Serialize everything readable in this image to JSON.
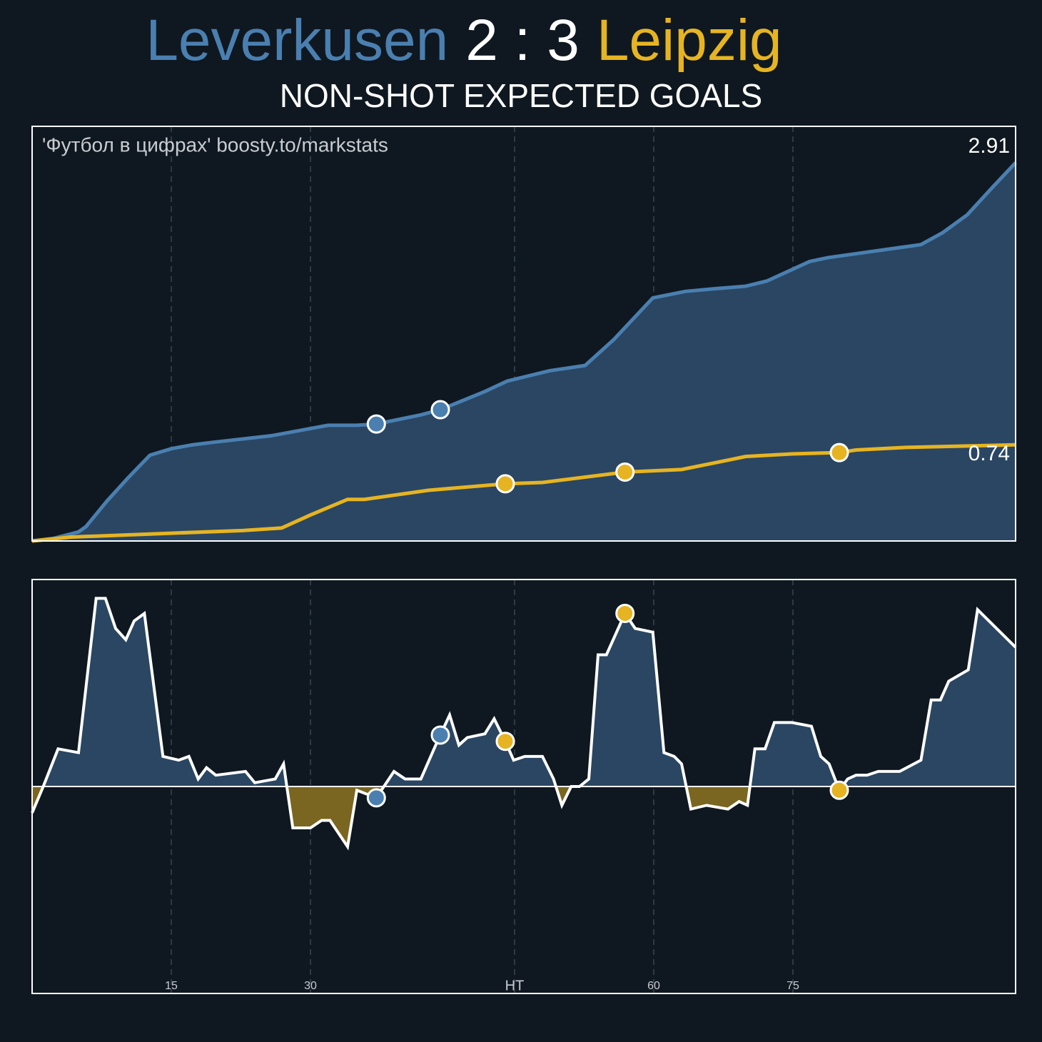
{
  "header": {
    "home": "Leverkusen",
    "score": "2 : 3",
    "away": "Leipzig",
    "subtitle": "NON-SHOT EXPECTED GOALS"
  },
  "chart_data": [
    {
      "type": "cumulative-line",
      "watermark": "'Футбол в цифрах' boosty.to/markstats",
      "xlim": [
        0,
        106
      ],
      "ylim": [
        0,
        3.19
      ],
      "xticks": [
        15,
        30,
        {
          "value": 52,
          "label": "HT"
        },
        {
          "value": 67,
          "label": "60"
        },
        {
          "value": 82,
          "label": "75"
        }
      ],
      "grid": true,
      "series": [
        {
          "color": "#4a7fb0",
          "fill": "#2a4662",
          "total": 2.91,
          "x": [
            0,
            2.3,
            5,
            5.8,
            8.1,
            10.4,
            12.7,
            15,
            17.3,
            19.6,
            25.8,
            31.9,
            35,
            37.1,
            41.9,
            44,
            48.8,
            51.2,
            55.8,
            59.6,
            62.7,
            66.9,
            70.4,
            73.5,
            76.9,
            79.2,
            83.8,
            85.8,
            95.8,
            98.1,
            100.8,
            103.5,
            106
          ],
          "values": [
            0,
            0.02,
            0.07,
            0.11,
            0.31,
            0.49,
            0.66,
            0.71,
            0.74,
            0.76,
            0.81,
            0.89,
            0.89,
            0.9,
            0.97,
            1.01,
            1.15,
            1.23,
            1.31,
            1.35,
            1.55,
            1.87,
            1.92,
            1.94,
            1.96,
            2.0,
            2.15,
            2.18,
            2.28,
            2.37,
            2.51,
            2.72,
            2.91
          ],
          "goals": [
            37.1,
            44
          ]
        },
        {
          "color": "#e6b422",
          "total": 0.74,
          "x": [
            0,
            4.2,
            15,
            22.7,
            26.9,
            30,
            34,
            35.8,
            42.7,
            51,
            55,
            63.9,
            70,
            73.5,
            76.9,
            81.9,
            87,
            88.8,
            94.2,
            106
          ],
          "values": [
            0,
            0.03,
            0.06,
            0.08,
            0.1,
            0.2,
            0.32,
            0.32,
            0.39,
            0.44,
            0.45,
            0.53,
            0.55,
            0.6,
            0.65,
            0.67,
            0.68,
            0.7,
            0.72,
            0.74
          ],
          "goals": [
            51,
            63.9,
            87
          ]
        }
      ]
    },
    {
      "type": "difference-area",
      "xlim": [
        0,
        106
      ],
      "ylim": [
        -0.55,
        0.55
      ],
      "xticks": [
        15,
        30,
        {
          "value": 52,
          "label": "HT"
        },
        {
          "value": 67,
          "label": "60"
        },
        {
          "value": 82,
          "label": "75"
        }
      ],
      "grid": true,
      "colors": {
        "line": "#ffffff",
        "positive": "#2a4662",
        "negative": "#7a6620"
      },
      "x": [
        0,
        1.2,
        2.8,
        5,
        6.9,
        7.9,
        9,
        10.1,
        11,
        12.1,
        14.1,
        15.8,
        16.9,
        17.9,
        18.8,
        19.8,
        23,
        24,
        26.2,
        27.1,
        28.1,
        30,
        31.2,
        32.1,
        34,
        35,
        37.1,
        39,
        40.2,
        41.9,
        43.5,
        45,
        46,
        46.9,
        48.8,
        49.8,
        51,
        51.9,
        53.1,
        55,
        56.2,
        57.1,
        58.1,
        59,
        60,
        61,
        61.9,
        63.9,
        65,
        66.9,
        68.1,
        69.2,
        70,
        71,
        72.7,
        75,
        76.2,
        77.1,
        77.9,
        79,
        80,
        81.9,
        84,
        85,
        85.9,
        87,
        87.9,
        88.8,
        90,
        91.2,
        93.5,
        95.8,
        96.9,
        97.9,
        98.8,
        100.9,
        101.9,
        106
      ],
      "values": [
        -0.07,
        0,
        0.1,
        0.09,
        0.5,
        0.5,
        0.42,
        0.39,
        0.44,
        0.46,
        0.08,
        0.07,
        0.08,
        0.02,
        0.05,
        0.03,
        0.04,
        0.01,
        0.02,
        0.06,
        -0.11,
        -0.11,
        -0.09,
        -0.09,
        -0.16,
        -0.01,
        -0.03,
        0.04,
        0.02,
        0.02,
        0.11,
        0.19,
        0.11,
        0.13,
        0.14,
        0.18,
        0.12,
        0.07,
        0.08,
        0.08,
        0.02,
        -0.05,
        0,
        0,
        0.02,
        0.35,
        0.35,
        0.46,
        0.42,
        0.41,
        0.09,
        0.08,
        0.06,
        -0.06,
        -0.05,
        -0.06,
        -0.04,
        -0.05,
        0.1,
        0.1,
        0.17,
        0.17,
        0.16,
        0.08,
        0.06,
        -0.01,
        0.02,
        0.03,
        0.03,
        0.04,
        0.04,
        0.07,
        0.23,
        0.23,
        0.28,
        0.31,
        0.47,
        0.37
      ],
      "goals": [
        {
          "x": 37.1,
          "color": "#4a7fb0"
        },
        {
          "x": 44,
          "color": "#4a7fb0"
        },
        {
          "x": 51,
          "color": "#e6b422"
        },
        {
          "x": 63.9,
          "color": "#e6b422"
        },
        {
          "x": 87,
          "color": "#e6b422"
        }
      ]
    }
  ]
}
